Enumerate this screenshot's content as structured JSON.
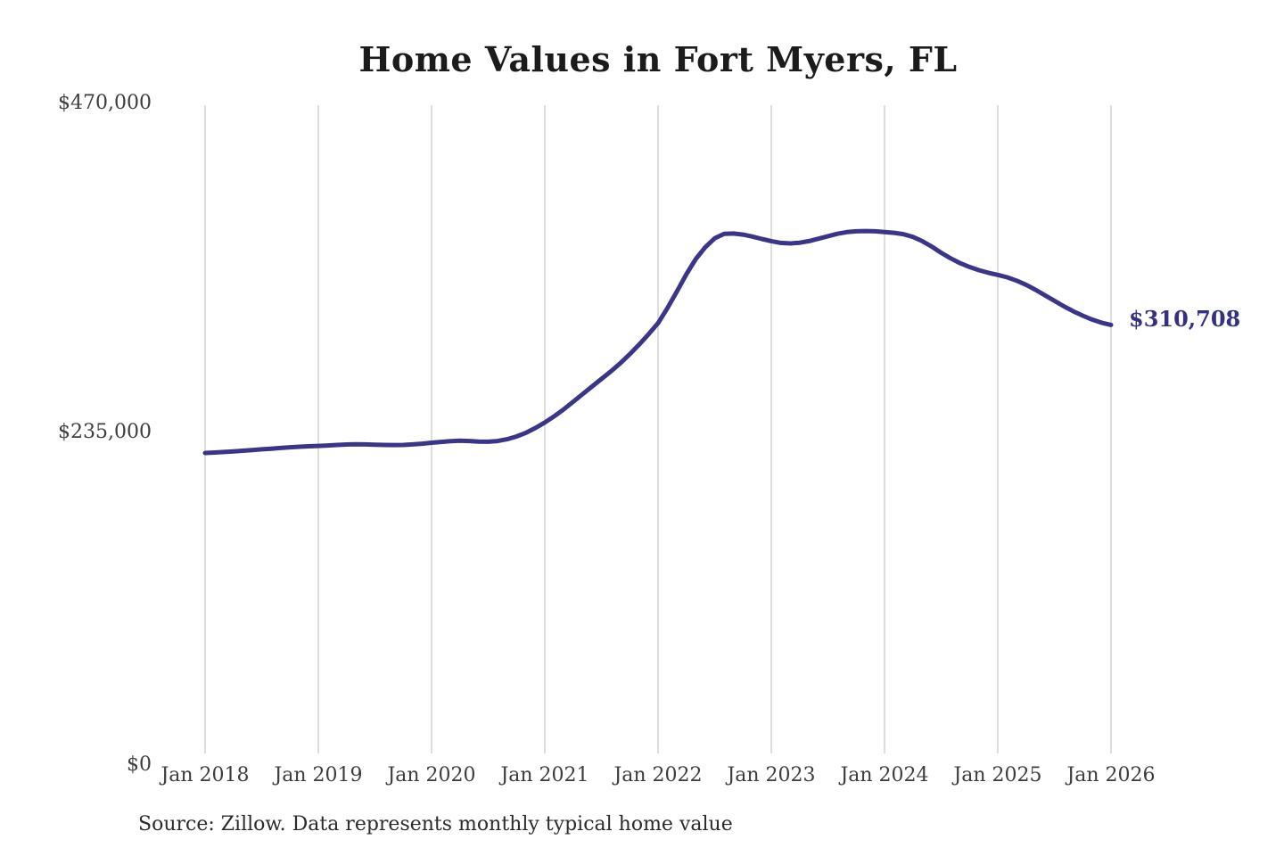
{
  "title": "Home Values in Fort Myers, FL",
  "source_note": "Source: Zillow. Data represents monthly typical home value",
  "end_label": "$310,708",
  "colors": {
    "line": "#3b3589",
    "end_label": "#353080",
    "grid": "#cccccc",
    "axis_text": "#3d3d3d",
    "title_text": "#1b1b1b",
    "background": "#ffffff"
  },
  "chart_data": {
    "type": "line",
    "title": "Home Values in Fort Myers, FL",
    "xlabel": "",
    "ylabel": "",
    "ylim": [
      0,
      470000
    ],
    "y_tick_labels": [
      "$470,000",
      "$235,000",
      "$0"
    ],
    "x_tick_labels": [
      "Jan 2018",
      "Jan 2019",
      "Jan 2020",
      "Jan 2021",
      "Jan 2022",
      "Jan 2023",
      "Jan 2024",
      "Jan 2025",
      "Jan 2026"
    ],
    "grid": "vertical-only",
    "legend": "none",
    "frequency": "monthly",
    "x_start": "Jan 2018",
    "x_end": "Jan 2026",
    "final_value": 310708,
    "series": [
      {
        "name": "Typical home value",
        "values": [
          217900,
          218200,
          218600,
          219000,
          219500,
          220000,
          220500,
          221000,
          221500,
          222000,
          222400,
          222700,
          223000,
          223300,
          223700,
          224000,
          224200,
          224100,
          223900,
          223700,
          223600,
          223700,
          224100,
          224600,
          225300,
          225900,
          226400,
          226700,
          226500,
          226100,
          226000,
          226500,
          227800,
          229800,
          232500,
          236000,
          240000,
          244500,
          249500,
          255000,
          260500,
          266000,
          271500,
          277000,
          283000,
          289500,
          296500,
          304000,
          312000,
          323000,
          335000,
          347500,
          358500,
          367000,
          373500,
          376800,
          377000,
          376200,
          374800,
          373000,
          371500,
          370200,
          369800,
          370300,
          371500,
          373200,
          375000,
          376800,
          378000,
          378600,
          378800,
          378600,
          378000,
          377500,
          376500,
          374500,
          371500,
          367500,
          363000,
          359000,
          355500,
          352700,
          350400,
          348500,
          347000,
          345200,
          342800,
          339800,
          336200,
          332200,
          328200,
          324200,
          320600,
          317400,
          314600,
          312300,
          310708
        ]
      }
    ]
  }
}
